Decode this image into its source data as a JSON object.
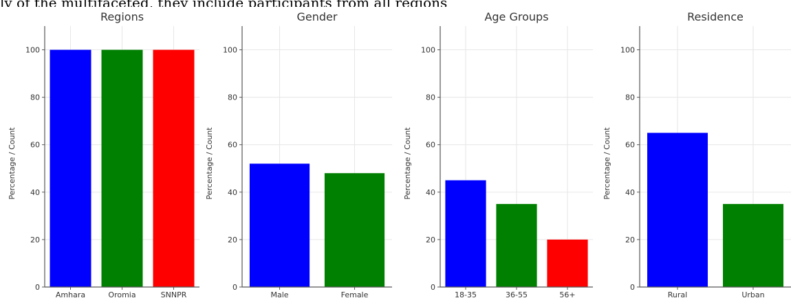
{
  "caption": "ly of the multifaceted, they include participants from all regions",
  "chart_data": [
    {
      "type": "bar",
      "title": "Regions",
      "xlabel": "",
      "ylabel": "Percentage / Count",
      "categories": [
        "Amhara",
        "Oromia",
        "SNNPR"
      ],
      "values": [
        100,
        100,
        100
      ],
      "colors": [
        "#0000ff",
        "#008000",
        "#ff0000"
      ],
      "ylim": [
        0,
        110
      ],
      "yticks": [
        0,
        20,
        40,
        60,
        80,
        100
      ],
      "grid": true
    },
    {
      "type": "bar",
      "title": "Gender",
      "xlabel": "",
      "ylabel": "Percentage / Count",
      "categories": [
        "Male",
        "Female"
      ],
      "values": [
        52,
        48
      ],
      "colors": [
        "#0000ff",
        "#008000"
      ],
      "ylim": [
        0,
        110
      ],
      "yticks": [
        0,
        20,
        40,
        60,
        80,
        100
      ],
      "grid": true
    },
    {
      "type": "bar",
      "title": "Age Groups",
      "xlabel": "",
      "ylabel": "Percentage / Count",
      "categories": [
        "18-35",
        "36-55",
        "56+"
      ],
      "values": [
        45,
        35,
        20
      ],
      "colors": [
        "#0000ff",
        "#008000",
        "#ff0000"
      ],
      "ylim": [
        0,
        110
      ],
      "yticks": [
        0,
        20,
        40,
        60,
        80,
        100
      ],
      "grid": true
    },
    {
      "type": "bar",
      "title": "Residence",
      "xlabel": "",
      "ylabel": "Percentage / Count",
      "categories": [
        "Rural",
        "Urban"
      ],
      "values": [
        65,
        35
      ],
      "colors": [
        "#0000ff",
        "#008000"
      ],
      "ylim": [
        0,
        110
      ],
      "yticks": [
        0,
        20,
        40,
        60,
        80,
        100
      ],
      "grid": true
    }
  ]
}
